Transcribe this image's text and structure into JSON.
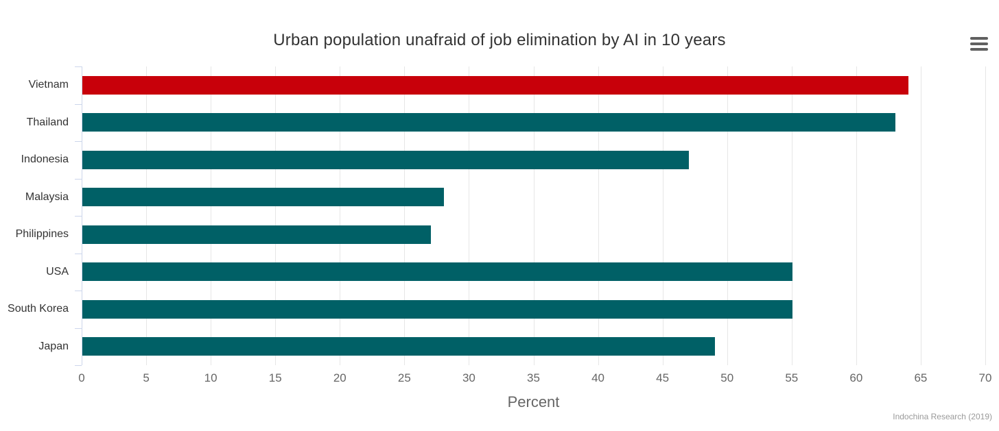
{
  "chart_data": {
    "type": "bar",
    "orientation": "horizontal",
    "title": "Urban population unafraid of job elimination by AI in 10 years",
    "categories": [
      "Vietnam",
      "Thailand",
      "Indonesia",
      "Malaysia",
      "Philippines",
      "USA",
      "South Korea",
      "Japan"
    ],
    "values": [
      64,
      63,
      47,
      28,
      27,
      55,
      55,
      49
    ],
    "highlight_index": 0,
    "xlabel": "Percent",
    "xlim": [
      0,
      70
    ],
    "x_ticks": [
      0,
      5,
      10,
      15,
      20,
      25,
      30,
      35,
      40,
      45,
      50,
      55,
      60,
      65,
      70
    ],
    "gridlines": "vertical, every 5 units",
    "legend": "none",
    "credits": "Indochina Research (2019)"
  },
  "colors": {
    "highlight_bar": "#c8000a",
    "default_bar": "#006066",
    "axis_line": "#ccd6eb",
    "gridline": "#e6e6e6",
    "title_text": "#333333",
    "category_label": "#333333",
    "tick_label": "#666666",
    "axis_title": "#666666",
    "credits_text": "#999999",
    "menu_icon": "#606060",
    "background": "#ffffff"
  },
  "icons": {
    "menu": "hamburger-menu-icon"
  }
}
